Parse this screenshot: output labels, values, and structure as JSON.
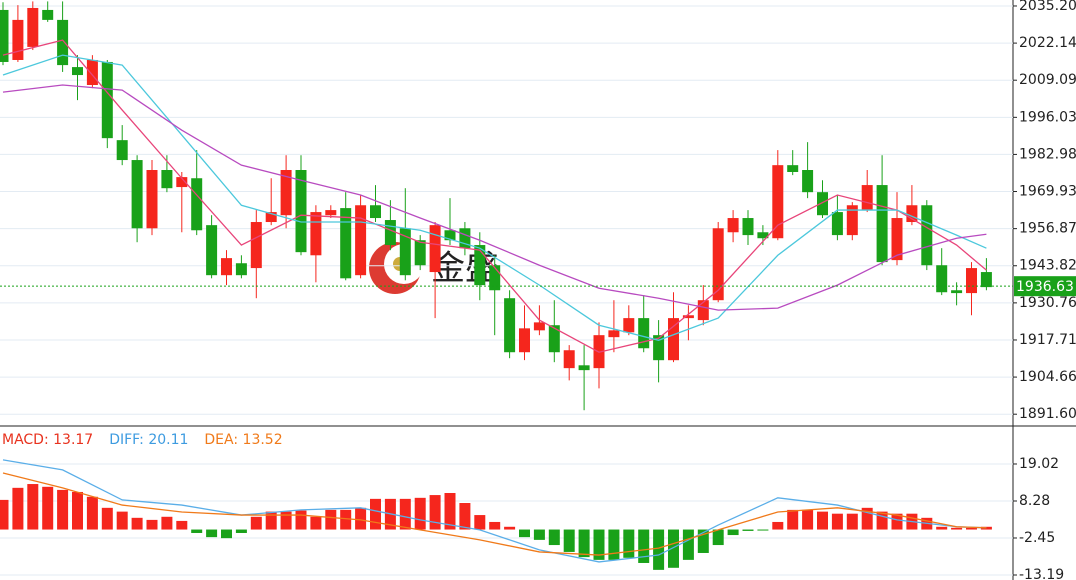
{
  "chart_data": [
    {
      "type": "candlestick",
      "up_color": "#f5261d",
      "down_color": "#19a119",
      "watermark": "金盛",
      "ylim": [
        1887.8,
        2037.3
      ],
      "yticks": [
        {
          "value": 2035.2,
          "label": "2035.20"
        },
        2022.14,
        2009.09,
        1996.03,
        1982.98,
        1969.93,
        1956.87,
        1943.82,
        1930.76,
        1917.71,
        1904.66,
        {
          "value": 1891.6,
          "label": "1891.60"
        }
      ],
      "last_price": 1936.63,
      "last_price_color": "#19a119",
      "open": [
        2033.8,
        2016.2,
        2020.8,
        2033.8,
        2030.3,
        2013.7,
        2007.4,
        2015.5,
        1988.0,
        1981.0,
        1957.0,
        1977.5,
        1971.5,
        1974.6,
        1958.1,
        1940.5,
        1944.7,
        1943.0,
        1959.2,
        1961.6,
        1977.5,
        1947.5,
        1961.6,
        1964.1,
        1940.5,
        1965.1,
        1959.9,
        1957.0,
        1952.8,
        1941.6,
        1956.3,
        1957.0,
        1951.1,
        1944.0,
        1932.4,
        1913.4,
        1921.1,
        1922.9,
        1907.8,
        1908.8,
        1907.8,
        1918.7,
        1920.4,
        1925.4,
        1919.4,
        1910.6,
        1925.4,
        1924.7,
        1931.7,
        1955.6,
        1960.6,
        1955.6,
        1953.5,
        1979.2,
        1977.5,
        1969.7,
        1962.7,
        1954.6,
        1963.4,
        1972.2,
        1945.8,
        1959.2,
        1965.1,
        1944.0,
        1935.2,
        1934.2,
        1941.6
      ],
      "high": [
        2036.5,
        2035.5,
        2036.8,
        2036.8,
        2036.8,
        2017.9,
        2017.9,
        2016.2,
        1993.3,
        1982.7,
        1981.0,
        1982.7,
        1976.8,
        1984.5,
        1961.6,
        1949.3,
        1947.5,
        1963.4,
        1974.6,
        1982.7,
        1982.7,
        1965.1,
        1965.1,
        1969.7,
        1968.7,
        1972.2,
        1966.9,
        1971.1,
        1954.6,
        1959.2,
        1967.6,
        1959.2,
        1955.6,
        1947.5,
        1935.2,
        1929.9,
        1929.9,
        1931.7,
        1915.9,
        1915.9,
        1923.9,
        1931.7,
        1929.9,
        1933.5,
        1924.7,
        1934.5,
        1929.9,
        1937.0,
        1959.2,
        1963.4,
        1963.4,
        1958.1,
        1984.5,
        1984.5,
        1987.3,
        1973.9,
        1968.7,
        1966.2,
        1977.5,
        1982.7,
        1969.7,
        1972.2,
        1966.9,
        1950.0,
        1938.0,
        1945.1,
        1946.5
      ],
      "low": [
        2014.4,
        2015.5,
        2019.7,
        2029.6,
        2012.0,
        2002.1,
        2006.3,
        1985.2,
        1979.2,
        1952.1,
        1954.6,
        1969.7,
        1955.6,
        1954.6,
        1939.4,
        1937.0,
        1939.4,
        1932.4,
        1958.1,
        1957.0,
        1947.5,
        1938.0,
        1960.6,
        1938.7,
        1939.4,
        1959.2,
        1949.3,
        1938.7,
        1942.3,
        1925.4,
        1951.1,
        1947.5,
        1931.7,
        1919.4,
        1911.3,
        1910.6,
        1919.4,
        1909.9,
        1903.5,
        1893.0,
        1900.7,
        1913.4,
        1919.4,
        1913.4,
        1902.8,
        1909.9,
        1917.6,
        1922.9,
        1931.0,
        1952.1,
        1951.1,
        1951.1,
        1952.8,
        1975.7,
        1967.6,
        1960.6,
        1952.8,
        1952.8,
        1962.7,
        1944.0,
        1944.0,
        1958.1,
        1942.3,
        1933.5,
        1929.9,
        1926.4,
        1935.2
      ],
      "close": [
        2015.5,
        2030.3,
        2034.5,
        2030.3,
        2014.4,
        2010.9,
        2016.2,
        1988.7,
        1981.0,
        1957.0,
        1977.5,
        1971.1,
        1975.0,
        1956.3,
        1940.5,
        1946.5,
        1940.5,
        1959.2,
        1962.7,
        1977.5,
        1948.6,
        1962.7,
        1963.4,
        1939.4,
        1965.1,
        1960.6,
        1951.1,
        1940.5,
        1944.0,
        1958.1,
        1952.8,
        1950.0,
        1937.0,
        1935.2,
        1913.4,
        1921.8,
        1923.9,
        1913.4,
        1914.1,
        1907.1,
        1919.4,
        1921.1,
        1925.4,
        1914.8,
        1910.6,
        1925.4,
        1926.4,
        1931.7,
        1957.0,
        1960.6,
        1954.6,
        1953.5,
        1979.2,
        1976.8,
        1969.7,
        1961.6,
        1954.6,
        1965.1,
        1972.2,
        1945.1,
        1960.6,
        1965.1,
        1944.0,
        1934.5,
        1934.2,
        1943.0,
        1936.3
      ],
      "series": [
        {
          "color": "#e8457a",
          "x": [
            0,
            4,
            8,
            12,
            16,
            20,
            24,
            28,
            32,
            36,
            40,
            44,
            48,
            52,
            56,
            60,
            64,
            66
          ],
          "values": [
            2017.9,
            2023.2,
            1998.6,
            1974.6,
            1951.1,
            1961.6,
            1960.6,
            1952.1,
            1949.3,
            1924.7,
            1913.4,
            1918.3,
            1935.2,
            1958.1,
            1968.7,
            1963.4,
            1951.1,
            1942.3
          ]
        },
        {
          "color": "#4cc8dc",
          "x": [
            0,
            4,
            8,
            12,
            16,
            20,
            24,
            28,
            32,
            36,
            40,
            44,
            48,
            52,
            56,
            60,
            64,
            66
          ],
          "values": [
            2010.9,
            2017.9,
            2014.4,
            1989.8,
            1965.1,
            1959.2,
            1959.2,
            1956.3,
            1950.0,
            1937.0,
            1922.9,
            1917.6,
            1925.4,
            1947.5,
            1963.4,
            1963.4,
            1954.6,
            1950.0
          ]
        },
        {
          "color": "#b84bc0",
          "x": [
            0,
            4,
            8,
            12,
            16,
            20,
            24,
            28,
            32,
            36,
            40,
            44,
            48,
            52,
            56,
            60,
            64,
            66
          ],
          "values": [
            2004.9,
            2007.4,
            2005.6,
            1991.5,
            1979.2,
            1973.9,
            1968.7,
            1960.6,
            1952.8,
            1944.0,
            1935.9,
            1932.4,
            1928.2,
            1928.9,
            1937.0,
            1947.5,
            1953.5,
            1954.9
          ]
        }
      ]
    },
    {
      "type": "macd",
      "up_color": "#f5261d",
      "down_color": "#19a119",
      "legend": [
        {
          "text": "MACD: 13.17",
          "color": "#e8321e"
        },
        {
          "text": "DIFF: 20.11",
          "color": "#3d9be0"
        },
        {
          "text": "DEA: 13.52",
          "color": "#f07a1a"
        }
      ],
      "ylim": [
        -14.64,
        29.75
      ],
      "yticks": [
        19.02,
        8.28,
        -2.45,
        -13.19
      ],
      "histogram": [
        8.6,
        12.1,
        13.2,
        12.4,
        11.5,
        10.9,
        9.5,
        6.3,
        5.2,
        3.4,
        2.8,
        3.7,
        2.5,
        -1.0,
        -2.2,
        -2.5,
        -1.0,
        3.7,
        5.2,
        5.2,
        5.5,
        3.7,
        5.7,
        5.7,
        6.3,
        8.9,
        8.9,
        8.9,
        9.2,
        10.0,
        10.6,
        7.7,
        4.2,
        2.2,
        0.8,
        -2.2,
        -3.0,
        -4.5,
        -6.5,
        -8.0,
        -8.8,
        -8.8,
        -8.2,
        -9.7,
        -11.7,
        -11.1,
        -8.8,
        -6.8,
        -4.5,
        -1.6,
        -0.4,
        -0.1,
        2.2,
        5.7,
        5.7,
        5.2,
        4.6,
        4.6,
        6.3,
        5.2,
        4.6,
        4.6,
        3.4,
        0.8,
        0.5,
        0.5,
        0.8
      ],
      "series": [
        {
          "color": "#5aaee8",
          "x": [
            0,
            4,
            8,
            12,
            16,
            20,
            24,
            28,
            32,
            36,
            40,
            44,
            48,
            52,
            56,
            60,
            64,
            66
          ],
          "values": [
            20.2,
            17.3,
            8.6,
            7.1,
            4.2,
            5.7,
            6.3,
            2.8,
            -0.1,
            -5.9,
            -9.4,
            -7.4,
            1.3,
            9.2,
            7.1,
            2.8,
            0.8,
            0.5
          ]
        },
        {
          "color": "#f07a1a",
          "x": [
            0,
            4,
            8,
            12,
            16,
            20,
            24,
            28,
            32,
            36,
            40,
            44,
            48,
            52,
            56,
            60,
            64,
            66
          ],
          "values": [
            16.4,
            12.1,
            7.1,
            5.1,
            4.2,
            4.2,
            2.8,
            -0.1,
            -3.0,
            -6.5,
            -7.4,
            -5.4,
            -0.1,
            5.1,
            6.3,
            4.2,
            0.8,
            0.5
          ]
        }
      ]
    }
  ]
}
